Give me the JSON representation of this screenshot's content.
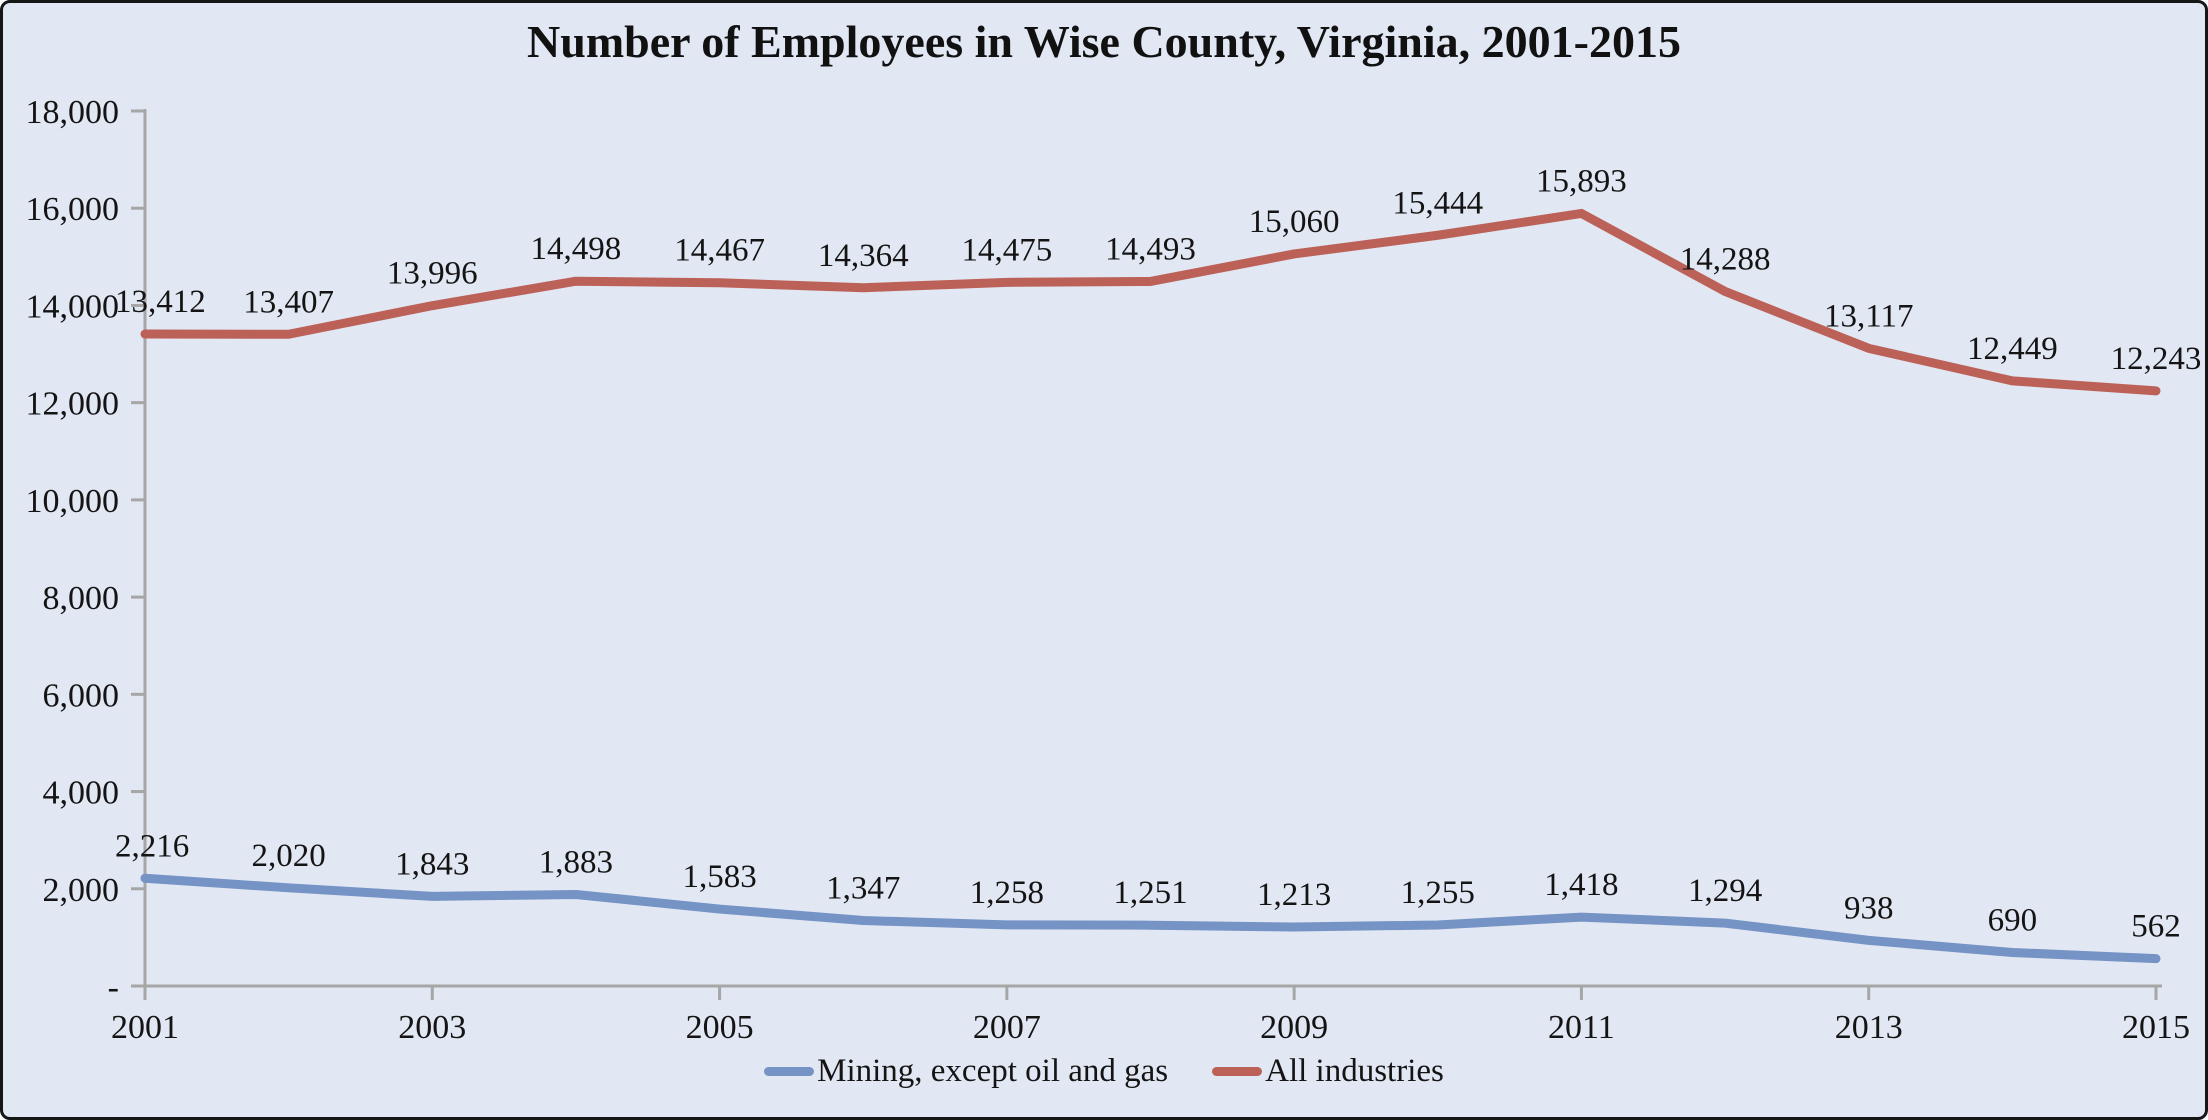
{
  "frame": {
    "background_color": "#e1e7f3",
    "border_color": "#161616",
    "axis_color": "#a6a6a6",
    "text_color": "#141414"
  },
  "chart_data": {
    "type": "line",
    "title": "Number of Employees in Wise County, Virginia, 2001-2015",
    "x": [
      2001,
      2002,
      2003,
      2004,
      2005,
      2006,
      2007,
      2008,
      2009,
      2010,
      2011,
      2012,
      2013,
      2014,
      2015
    ],
    "x_tick_labels": [
      "2001",
      "2003",
      "2005",
      "2007",
      "2009",
      "2011",
      "2013",
      "2015"
    ],
    "ylim": [
      0,
      18000
    ],
    "y_tick_step": 2000,
    "y_tick_labels": [
      "-",
      "2,000",
      "4,000",
      "6,000",
      "8,000",
      "10,000",
      "12,000",
      "14,000",
      "16,000",
      "18,000"
    ],
    "grid": false,
    "data_labels": true,
    "legend_position": "bottom",
    "series": [
      {
        "name": "Mining, except oil and gas",
        "color": "#7593c5",
        "values": [
          2216,
          2020,
          1843,
          1883,
          1583,
          1347,
          1258,
          1251,
          1213,
          1255,
          1418,
          1294,
          938,
          690,
          562
        ]
      },
      {
        "name": "All industries",
        "color": "#bc6158",
        "values": [
          13412,
          13407,
          13996,
          14498,
          14467,
          14364,
          14475,
          14493,
          15060,
          15444,
          15893,
          14288,
          13117,
          12449,
          12243
        ]
      }
    ]
  }
}
